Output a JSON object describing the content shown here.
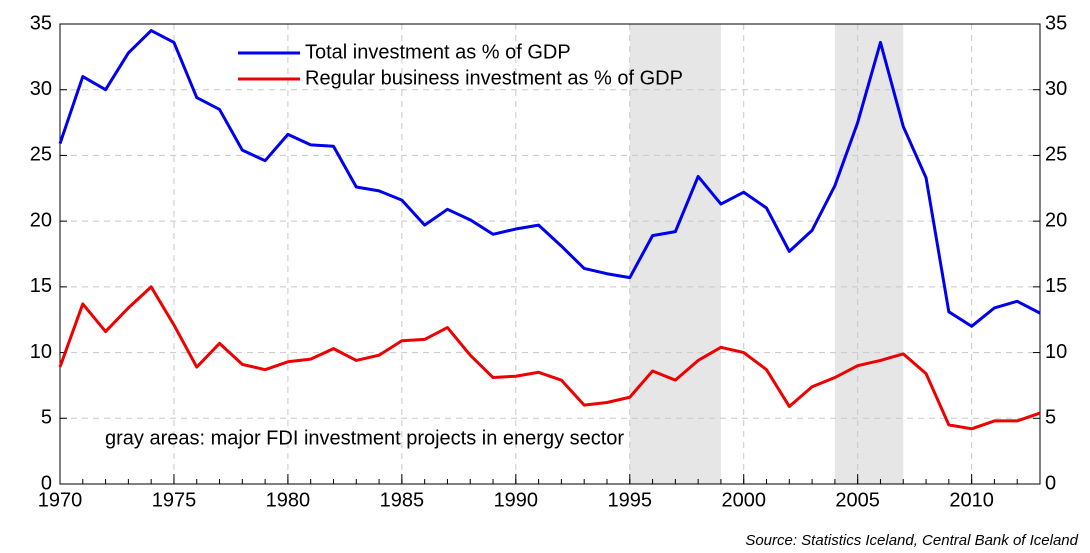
{
  "chart_data": {
    "type": "line",
    "x": [
      1970,
      1971,
      1972,
      1973,
      1974,
      1975,
      1976,
      1977,
      1978,
      1979,
      1980,
      1981,
      1982,
      1983,
      1984,
      1985,
      1986,
      1987,
      1988,
      1989,
      1990,
      1991,
      1992,
      1993,
      1994,
      1995,
      1996,
      1997,
      1998,
      1999,
      2000,
      2001,
      2002,
      2003,
      2004,
      2005,
      2006,
      2007,
      2008,
      2009,
      2010,
      2011,
      2012,
      2013
    ],
    "series": [
      {
        "name": "Total investment as % of GDP",
        "color": "#0000ee",
        "values": [
          25.9,
          31.0,
          30.0,
          32.8,
          34.5,
          33.6,
          29.4,
          28.5,
          25.4,
          24.6,
          26.6,
          25.8,
          25.7,
          22.6,
          22.3,
          21.6,
          19.7,
          20.9,
          20.1,
          19.0,
          19.4,
          19.7,
          18.1,
          16.4,
          16.0,
          15.7,
          18.9,
          19.2,
          23.4,
          21.3,
          22.2,
          21.0,
          17.7,
          19.3,
          22.7,
          27.5,
          33.6,
          27.2,
          23.3,
          13.1,
          12.0,
          13.4,
          13.9,
          13.0
        ]
      },
      {
        "name": "Regular business investment as % of GDP",
        "color": "#ee0000",
        "values": [
          8.9,
          13.7,
          11.6,
          13.4,
          15.0,
          12.1,
          8.9,
          10.7,
          9.1,
          8.7,
          9.3,
          9.5,
          10.3,
          9.4,
          9.8,
          10.9,
          11.0,
          11.9,
          9.8,
          8.1,
          8.2,
          8.5,
          7.9,
          6.0,
          6.2,
          6.6,
          8.6,
          7.9,
          9.4,
          10.4,
          10.0,
          8.7,
          5.9,
          7.4,
          8.1,
          9.0,
          9.4,
          9.9,
          8.4,
          4.5,
          4.2,
          4.8,
          4.8,
          5.4
        ]
      }
    ],
    "shaded": [
      [
        1995,
        1999
      ],
      [
        2004,
        2007
      ]
    ],
    "shade_color": "#e6e6e6",
    "annotation": "gray areas: major FDI investment projects in energy sector",
    "source": "Source: Statistics Iceland, Central Bank of Iceland",
    "xlim": [
      1970,
      2013
    ],
    "xticks": [
      1970,
      1975,
      1980,
      1985,
      1990,
      1995,
      2000,
      2005,
      2010
    ],
    "ylim": [
      0,
      35
    ],
    "yticks": [
      0,
      5,
      10,
      15,
      20,
      25,
      30,
      35
    ],
    "y2lim": [
      0,
      35
    ],
    "y2ticks": [
      0,
      5,
      10,
      15,
      20,
      25,
      30,
      35
    ],
    "grid": true,
    "legend": "top-center"
  }
}
